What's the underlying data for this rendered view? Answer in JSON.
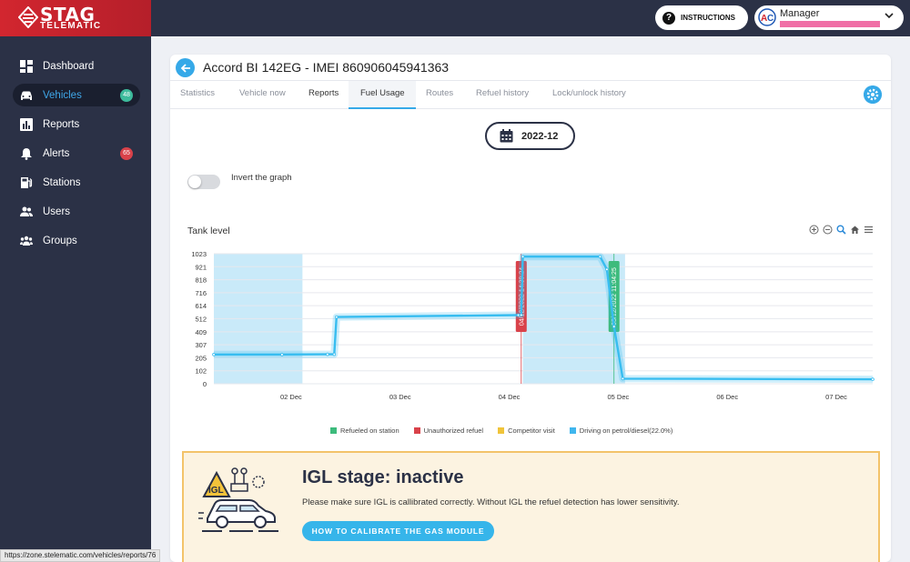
{
  "brand": {
    "name": "STAG",
    "sub": "TELEMATIC"
  },
  "header": {
    "instructions_label": "INSTRUCTIONS",
    "user_role": "Manager"
  },
  "sidebar": {
    "items": [
      {
        "label": "Dashboard",
        "icon": "dashboard-icon"
      },
      {
        "label": "Vehicles",
        "icon": "car-icon",
        "badge": "48",
        "active": true
      },
      {
        "label": "Reports",
        "icon": "reports-icon"
      },
      {
        "label": "Alerts",
        "icon": "bell-icon",
        "badge": "65"
      },
      {
        "label": "Stations",
        "icon": "fuel-station-icon"
      },
      {
        "label": "Users",
        "icon": "users-icon"
      },
      {
        "label": "Groups",
        "icon": "groups-icon"
      }
    ]
  },
  "vehicle": {
    "title": "Accord BI 142EG - IMEI 860906045941363"
  },
  "tabs": [
    {
      "label": "Statistics"
    },
    {
      "label": "Vehicle now"
    },
    {
      "label": "Reports"
    },
    {
      "label": "Fuel Usage",
      "active": true
    },
    {
      "label": "Routes"
    },
    {
      "label": "Refuel history"
    },
    {
      "label": "Lock/unlock history"
    }
  ],
  "date_selector": {
    "value": "2022-12"
  },
  "invert_toggle": {
    "label": "Invert the graph",
    "on": false
  },
  "chart_title": "Tank level",
  "chart_data": {
    "type": "line",
    "title": "Tank level",
    "y_ticks": [
      "1023",
      "921",
      "818",
      "716",
      "614",
      "512",
      "409",
      "307",
      "205",
      "102",
      "0"
    ],
    "x_ticks": [
      "02 Dec",
      "03 Dec",
      "04 Dec",
      "05 Dec",
      "06 Dec",
      "07 Dec"
    ],
    "ylim": [
      0,
      1023
    ],
    "series": [
      {
        "name": "Tank level",
        "points": [
          {
            "x": "2022-12-01 19:00",
            "y": 230
          },
          {
            "x": "2022-12-02 10:00",
            "y": 230
          },
          {
            "x": "2022-12-02 20:00",
            "y": 232
          },
          {
            "x": "2022-12-02 21:30",
            "y": 232
          },
          {
            "x": "2022-12-02 22:00",
            "y": 525
          },
          {
            "x": "2022-12-04 14:00",
            "y": 540
          },
          {
            "x": "2022-12-04 14:39",
            "y": 540
          },
          {
            "x": "2022-12-04 15:00",
            "y": 1000
          },
          {
            "x": "2022-12-05 08:00",
            "y": 1000
          },
          {
            "x": "2022-12-05 09:30",
            "y": 900
          },
          {
            "x": "2022-12-05 11:04",
            "y": 450
          },
          {
            "x": "2022-12-05 13:00",
            "y": 40
          },
          {
            "x": "2022-12-07 20:00",
            "y": 35
          }
        ]
      }
    ],
    "shaded_intervals": [
      {
        "from": "2022-12-01 19:00",
        "to": "2022-12-02 14:30"
      },
      {
        "from": "2022-12-04 15:00",
        "to": "2022-12-05 13:30"
      }
    ],
    "annotations": [
      {
        "label": "04/12/2022 14:39:24",
        "color": "#d9424a",
        "x": "2022-12-04 14:39"
      },
      {
        "label": "05/12/2022 11:04:25",
        "color": "#3dbb7c",
        "x": "2022-12-05 11:04"
      }
    ],
    "legend": [
      {
        "label": "Refueled on station",
        "color": "#3dbb7c"
      },
      {
        "label": "Unauthorized refuel",
        "color": "#d9424a"
      },
      {
        "label": "Competitor visit",
        "color": "#f0c43a"
      },
      {
        "label": "Driving on petrol/diesel(22.0%)",
        "color": "#3fb6ee"
      }
    ],
    "legend_position": "bottom",
    "grid": true
  },
  "igl": {
    "title": "IGL stage: inactive",
    "badge": "IGL",
    "text": "Please make sure IGL is callibrated correctly. Without IGL the refuel detection has lower sensitivity.",
    "button_label": "HOW TO CALIBRATE THE GAS MODULE"
  },
  "status_url": "https://zone.stelematic.com/vehicles/reports/76",
  "colors": {
    "accent": "#36a9e8",
    "sidebar": "#2b3146",
    "brand_red": "#d2262f"
  }
}
